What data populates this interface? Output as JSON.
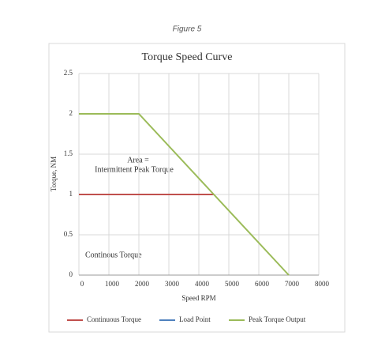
{
  "chart_data": {
    "type": "line",
    "caption": "Figure 5",
    "title": "Torque Speed Curve",
    "x_label": "Speed RPM",
    "y_label": "Torque, NM",
    "x": [
      0,
      2000,
      4500,
      7000
    ],
    "series": [
      {
        "name": "Continuous Torque",
        "color": "#c0504d",
        "values": [
          1,
          1,
          1,
          null
        ]
      },
      {
        "name": "Load Point",
        "color": "#4f81bd",
        "values": [
          null,
          null,
          null,
          null
        ]
      },
      {
        "name": "Peak Torque Output",
        "color": "#9bbb59",
        "values": [
          2,
          2,
          1,
          0
        ]
      }
    ],
    "xlim": [
      0,
      8000
    ],
    "xticks": [
      0,
      1000,
      2000,
      3000,
      4000,
      5000,
      6000,
      7000,
      8000
    ],
    "ylim": [
      0,
      2.5
    ],
    "yticks": [
      0,
      0.5,
      1,
      1.5,
      2,
      2.5
    ],
    "grid": true,
    "legend": "bottom",
    "annotations": [
      "Area =",
      "Intermittent Peak Torque",
      "Continous Torque"
    ]
  }
}
